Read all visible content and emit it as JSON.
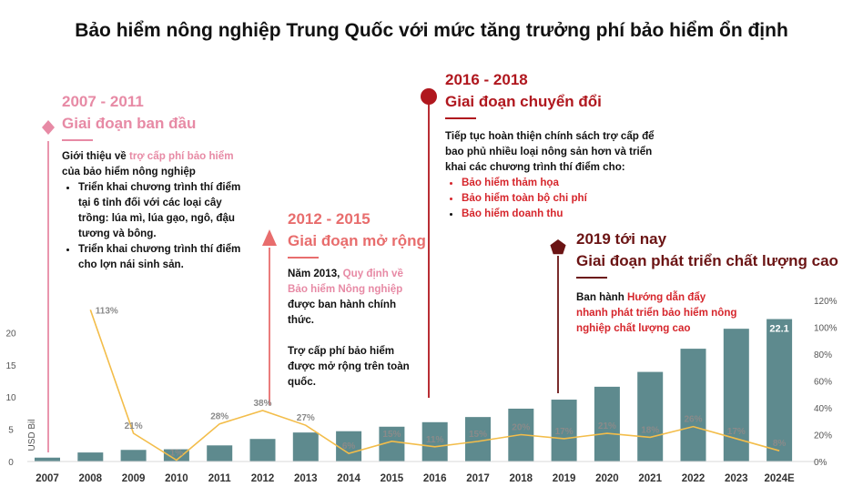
{
  "title": "Bảo hiểm nông nghiệp Trung Quốc với mức tăng trưởng phí bảo hiểm ổn định",
  "colors": {
    "bar": "#5e8a8e",
    "line": "#f3bd4a",
    "phase1": "#e78aa5",
    "phase2": "#e86d6d",
    "phase3": "#b0171e",
    "phase4": "#6b1414"
  },
  "phases": [
    {
      "years": "2007 - 2011",
      "name": "Giai đoạn ban đầu",
      "intro_pre": "Giới thiệu về ",
      "intro_hl": "trợ cấp phí bảo hiểm",
      "intro_post": "của bảo hiểm nông nghiệp",
      "bullets": [
        "Triển khai chương trình thí điểm tại 6 tỉnh đối với các loại cây trồng: lúa mì, lúa gạo, ngô, đậu tương và bông.",
        "Triển khai chương trình thí điểm cho lợn nái sinh sản."
      ]
    },
    {
      "years": "2012 - 2015",
      "name": "Giai đoạn mở rộng",
      "p1_pre": "Năm 2013, ",
      "p1_hl": "Quy định về Bảo hiểm Nông nghiệp",
      "p1_post": " được ban hành chính thức.",
      "p2": "Trợ cấp phí bảo hiểm được mở rộng trên toàn quốc."
    },
    {
      "years": "2016 - 2018",
      "name": "Giai đoạn chuyển đổi",
      "intro": "Tiếp tục hoàn thiện chính sách trợ cấp để bao phủ nhiều loại nông sản hơn và triển khai các chương trình thí điểm cho:",
      "bullets": [
        "Bảo hiểm thảm họa",
        "Bảo hiểm toàn bộ chi phí",
        "Bảo hiểm doanh thu"
      ]
    },
    {
      "years": "2019 tới nay",
      "name": "Giai đoạn phát triển chất lượng cao",
      "p1_pre": "Ban hành ",
      "p1_hl": "Hướng dẫn đẩy nhanh phát triển bảo hiểm nông nghiệp chất lượng cao"
    }
  ],
  "chart_data": {
    "type": "bar",
    "categories": [
      "2007",
      "2008",
      "2009",
      "2010",
      "2011",
      "2012",
      "2013",
      "2014",
      "2015",
      "2016",
      "2017",
      "2018",
      "2019",
      "2020",
      "2021",
      "2022",
      "2023",
      "2024E"
    ],
    "series": [
      {
        "values": [
          0.6,
          1.4,
          1.8,
          1.9,
          2.5,
          3.5,
          4.5,
          4.7,
          5.4,
          6.1,
          6.9,
          8.2,
          9.6,
          11.6,
          13.9,
          17.5,
          20.6,
          22.1
        ]
      },
      {
        "values": [
          null,
          113,
          21,
          1,
          28,
          38,
          27,
          6,
          15,
          11,
          15,
          20,
          17,
          21,
          18,
          26,
          17,
          8
        ]
      }
    ],
    "bar_top_label": "22.1",
    "line_labels": [
      "",
      "113%",
      "21%",
      "1%",
      "28%",
      "38%",
      "27%",
      "6%",
      "15%",
      "11%",
      "15%",
      "20%",
      "17%",
      "21%",
      "18%",
      "26%",
      "17%",
      "8%"
    ],
    "ylabel": "USD Bil",
    "yticks": [
      "0",
      "5",
      "10",
      "15",
      "20"
    ],
    "ylim": [
      0,
      25
    ],
    "y2ticks": [
      "0%",
      "20%",
      "40%",
      "60%",
      "80%",
      "100%",
      "120%"
    ],
    "y2lim": [
      0,
      120
    ],
    "grid": false
  }
}
